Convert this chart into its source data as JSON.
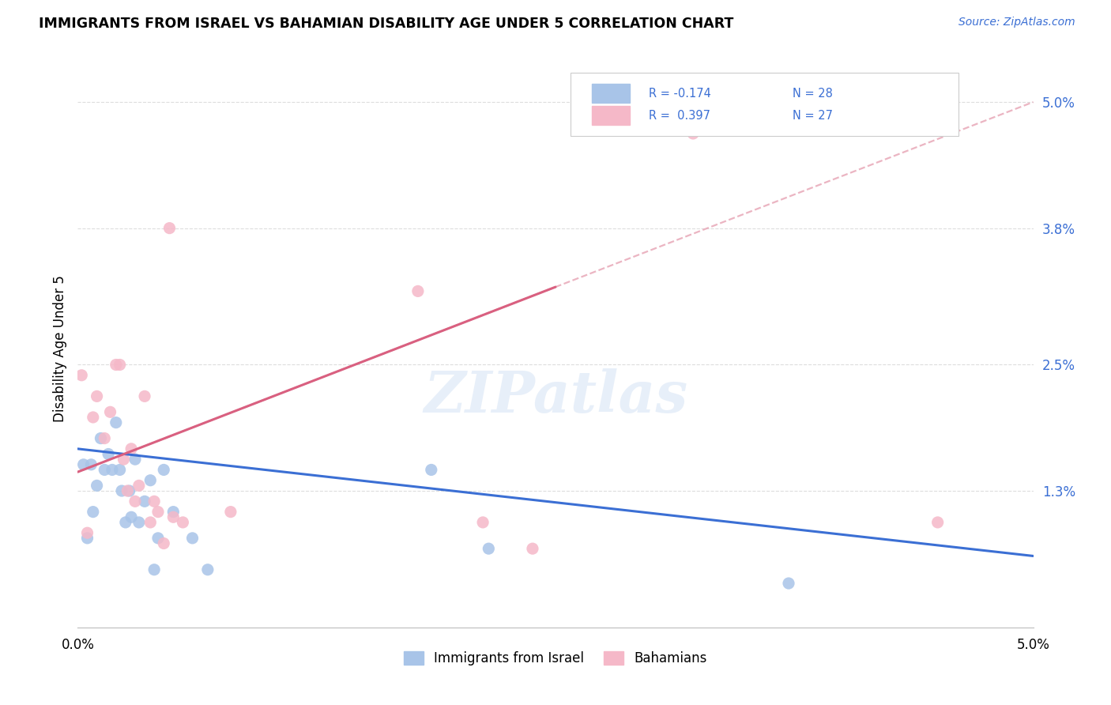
{
  "title": "IMMIGRANTS FROM ISRAEL VS BAHAMIAN DISABILITY AGE UNDER 5 CORRELATION CHART",
  "source": "Source: ZipAtlas.com",
  "ylabel": "Disability Age Under 5",
  "legend_label1": "Immigrants from Israel",
  "legend_label2": "Bahamians",
  "r1": "-0.174",
  "n1": "28",
  "r2": "0.397",
  "n2": "27",
  "xmin": 0.0,
  "xmax": 5.0,
  "ymin": 0.0,
  "ymax": 5.3,
  "ytick_positions": [
    1.3,
    2.5,
    3.8,
    5.0
  ],
  "ytick_labels": [
    "1.3%",
    "2.5%",
    "3.8%",
    "5.0%"
  ],
  "color_blue": "#a8c4e8",
  "color_pink": "#f5b8c8",
  "color_blue_line": "#3b6fd4",
  "color_pink_line": "#d96080",
  "color_pink_dashed": "#e8a8b8",
  "blue_scatter_x": [
    0.03,
    0.05,
    0.07,
    0.08,
    0.1,
    0.12,
    0.14,
    0.16,
    0.18,
    0.2,
    0.22,
    0.23,
    0.25,
    0.27,
    0.28,
    0.3,
    0.32,
    0.35,
    0.38,
    0.4,
    0.42,
    0.45,
    0.5,
    0.6,
    0.68,
    1.85,
    2.15,
    3.72
  ],
  "blue_scatter_y": [
    1.55,
    0.85,
    1.55,
    1.1,
    1.35,
    1.8,
    1.5,
    1.65,
    1.5,
    1.95,
    1.5,
    1.3,
    1.0,
    1.3,
    1.05,
    1.6,
    1.0,
    1.2,
    1.4,
    0.55,
    0.85,
    1.5,
    1.1,
    0.85,
    0.55,
    1.5,
    0.75,
    0.42
  ],
  "pink_scatter_x": [
    0.02,
    0.05,
    0.08,
    0.1,
    0.14,
    0.17,
    0.2,
    0.22,
    0.24,
    0.26,
    0.28,
    0.3,
    0.32,
    0.35,
    0.38,
    0.4,
    0.42,
    0.45,
    0.5,
    0.55,
    0.8,
    1.78,
    2.12,
    2.38,
    3.22,
    4.5,
    0.48
  ],
  "pink_scatter_y": [
    2.4,
    0.9,
    2.0,
    2.2,
    1.8,
    2.05,
    2.5,
    2.5,
    1.6,
    1.3,
    1.7,
    1.2,
    1.35,
    2.2,
    1.0,
    1.2,
    1.1,
    0.8,
    1.05,
    1.0,
    1.1,
    3.2,
    1.0,
    0.75,
    4.7,
    1.0,
    3.8
  ],
  "background_color": "#ffffff",
  "grid_color": "#dddddd",
  "watermark": "ZIPatlas",
  "watermark_color": "#c5d8f0"
}
